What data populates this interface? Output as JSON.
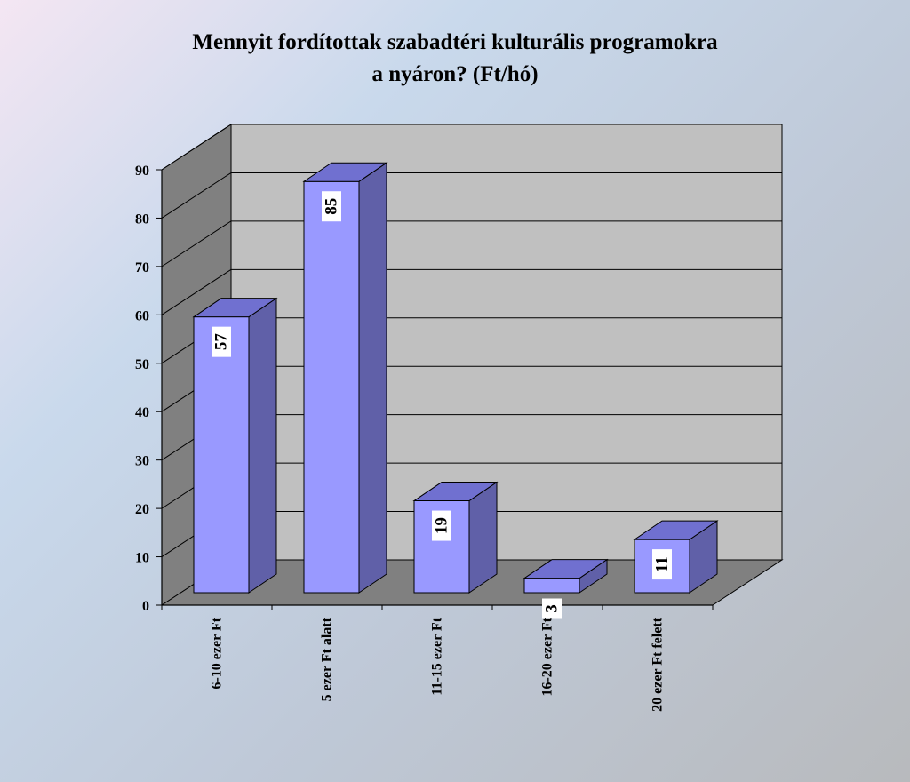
{
  "chart_data": {
    "type": "bar",
    "title_lines": [
      "Mennyit fordítottak szabadtéri kulturális programokra",
      "a nyáron? (Ft/hó)"
    ],
    "categories": [
      "6-10 ezer Ft",
      "5 ezer Ft alatt",
      "11-15 ezer Ft",
      "16-20 ezer Ft",
      "20 ezer Ft felett"
    ],
    "values": [
      57,
      85,
      19,
      3,
      11
    ],
    "y_ticks": [
      "0",
      "10",
      "20",
      "30",
      "40",
      "50",
      "60",
      "70",
      "80",
      "90"
    ],
    "ylim": [
      0,
      90
    ],
    "grid": true,
    "legend": "none",
    "colors": {
      "bar_front": "#9999ff",
      "bar_top": "#7070d0",
      "bar_side": "#6060a8",
      "back_wall": "#c0c0c0",
      "side_wall": "#808080",
      "floor": "#808080"
    }
  }
}
